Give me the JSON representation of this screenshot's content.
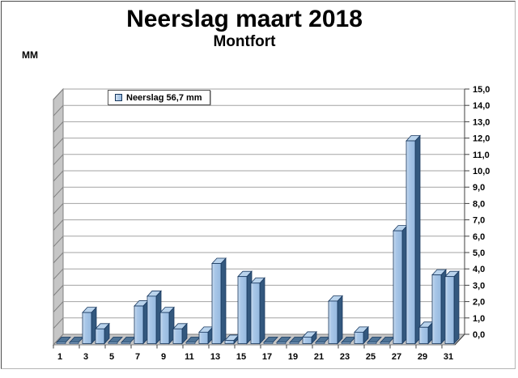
{
  "title": "Neerslag maart 2018",
  "subtitle": "Montfort",
  "y_axis_unit": "MM",
  "legend": {
    "label": "Neerslag 56,7 mm",
    "marker_color": "#A9C7E8",
    "position": "top-left"
  },
  "chart_data": {
    "type": "bar",
    "style": "3d-column",
    "title": "Neerslag maart 2018",
    "subtitle": "Montfort",
    "ylabel": "MM",
    "legend_label": "Neerslag 56,7 mm",
    "total_mm": "56,7",
    "x": [
      1,
      2,
      3,
      4,
      5,
      6,
      7,
      8,
      9,
      10,
      11,
      12,
      13,
      14,
      15,
      16,
      17,
      18,
      19,
      20,
      21,
      22,
      23,
      24,
      25,
      26,
      27,
      28,
      29,
      30,
      31
    ],
    "values": [
      0,
      0,
      1.9,
      0.9,
      0,
      0,
      2.3,
      2.9,
      1.9,
      0.9,
      0,
      0.7,
      4.9,
      0.2,
      4.1,
      3.7,
      0,
      0,
      0,
      0.4,
      0,
      2.6,
      0,
      0.7,
      0,
      0,
      6.9,
      12.4,
      1.0,
      4.2,
      4.1
    ],
    "ylim": [
      0,
      15
    ],
    "ytick_step": 1,
    "ytick_labels": [
      "0,0",
      "1,0",
      "2,0",
      "3,0",
      "4,0",
      "5,0",
      "6,0",
      "7,0",
      "8,0",
      "9,0",
      "10,0",
      "11,0",
      "12,0",
      "13,0",
      "14,0",
      "15,0"
    ],
    "xtick_labels": [
      "1",
      "3",
      "5",
      "7",
      "9",
      "11",
      "13",
      "15",
      "17",
      "19",
      "21",
      "23",
      "25",
      "27",
      "29",
      "31"
    ],
    "grid": true,
    "legend_position": "top-left",
    "colors": {
      "bar_front_light": "#CFE0F2",
      "bar_front": "#A9C7E8",
      "bar_front_dark": "#96B9DF",
      "bar_side": "#33587E",
      "bar_top": "#B9D3EC",
      "bar_outline": "#17375E",
      "zero_slab": "#4E7396",
      "wall": "#C6C6C6",
      "wall_border": "#808080",
      "gridline": "#A3A3A3",
      "axis_line": "#404040",
      "text": "#000000",
      "background": "#FFFFFF"
    }
  }
}
